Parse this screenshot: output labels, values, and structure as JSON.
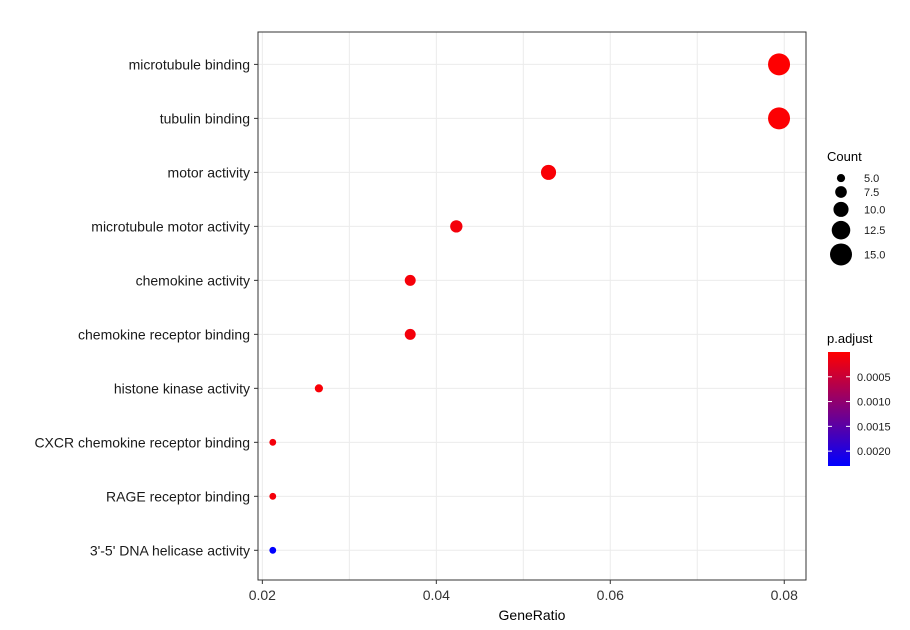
{
  "chart_data": {
    "type": "scatter",
    "xlabel": "GeneRatio",
    "xlim": [
      0.0195,
      0.0825
    ],
    "xticks": [
      0.02,
      0.04,
      0.06,
      0.08
    ],
    "xtick_labels": [
      "0.02",
      "0.04",
      "0.06",
      "0.08"
    ],
    "grid": true,
    "categories": [
      "microtubule binding",
      "tubulin binding",
      "motor activity",
      "microtubule motor activity",
      "chemokine activity",
      "chemokine receptor binding",
      "histone kinase activity",
      "CXCR chemokine receptor binding",
      "RAGE receptor binding",
      "3'-5' DNA helicase activity"
    ],
    "points": [
      {
        "category": "microtubule binding",
        "gene_ratio": 0.0794,
        "count": 15,
        "p_adjust": 1e-05
      },
      {
        "category": "tubulin binding",
        "gene_ratio": 0.0794,
        "count": 15,
        "p_adjust": 3e-05
      },
      {
        "category": "motor activity",
        "gene_ratio": 0.0529,
        "count": 10,
        "p_adjust": 5e-05
      },
      {
        "category": "microtubule motor activity",
        "gene_ratio": 0.0423,
        "count": 8,
        "p_adjust": 0.0001
      },
      {
        "category": "chemokine activity",
        "gene_ratio": 0.037,
        "count": 7,
        "p_adjust": 8e-05
      },
      {
        "category": "chemokine receptor binding",
        "gene_ratio": 0.037,
        "count": 7,
        "p_adjust": 0.0001
      },
      {
        "category": "histone kinase activity",
        "gene_ratio": 0.0265,
        "count": 5,
        "p_adjust": 5e-05
      },
      {
        "category": "CXCR chemokine receptor binding",
        "gene_ratio": 0.0212,
        "count": 4,
        "p_adjust": 0.0001
      },
      {
        "category": "RAGE receptor binding",
        "gene_ratio": 0.0212,
        "count": 4,
        "p_adjust": 0.0001
      },
      {
        "category": "3'-5' DNA helicase activity",
        "gene_ratio": 0.0212,
        "count": 4,
        "p_adjust": 0.0023
      }
    ],
    "size_legend": {
      "title": "Count",
      "values": [
        5.0,
        7.5,
        10.0,
        12.5,
        15.0
      ],
      "labels": [
        "5.0",
        "7.5",
        "10.0",
        "12.5",
        "15.0"
      ]
    },
    "color_legend": {
      "title": "p.adjust",
      "low_color": "#ff0000",
      "high_color": "#0000ff",
      "range": [
        0.0,
        0.0023
      ],
      "ticks": [
        0.0005,
        0.001,
        0.0015,
        0.002
      ],
      "labels": [
        "0.0005",
        "0.0010",
        "0.0015",
        "0.0020"
      ]
    },
    "legend_position": "right"
  }
}
